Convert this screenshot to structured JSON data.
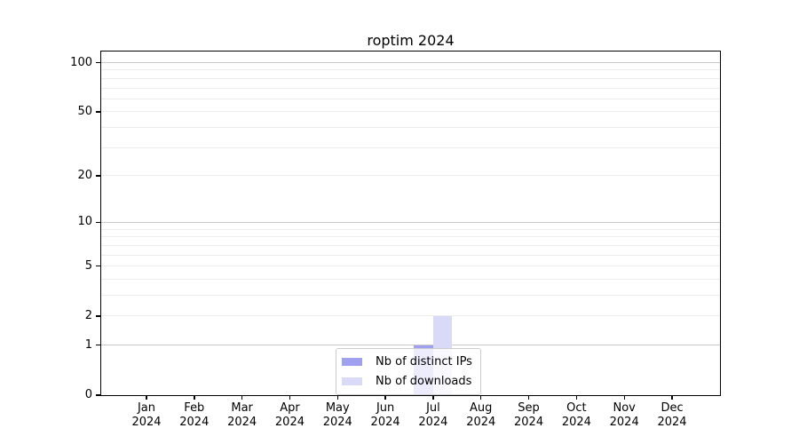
{
  "figure": {
    "background": "#ffffff"
  },
  "chart_data": {
    "type": "bar",
    "title": "roptim 2024",
    "x": [
      "Jan 2024",
      "Feb 2024",
      "Mar 2024",
      "Apr 2024",
      "May 2024",
      "Jun 2024",
      "Jul 2024",
      "Aug 2024",
      "Sep 2024",
      "Oct 2024",
      "Nov 2024",
      "Dec 2024"
    ],
    "months": [
      "Jan",
      "Feb",
      "Mar",
      "Apr",
      "May",
      "Jun",
      "Jul",
      "Aug",
      "Sep",
      "Oct",
      "Nov",
      "Dec"
    ],
    "year": "2024",
    "series": [
      {
        "name": "Nb of distinct IPs",
        "color": "#a0a0f0",
        "values": [
          0,
          0,
          0,
          0,
          0,
          0,
          1,
          0,
          0,
          0,
          0,
          0
        ]
      },
      {
        "name": "Nb of downloads",
        "color": "#d9d9f8",
        "values": [
          0,
          0,
          0,
          0,
          0,
          0,
          2,
          0,
          0,
          0,
          0,
          0
        ]
      }
    ],
    "yscale": "log1p",
    "ylim": [
      0,
      108
    ],
    "y_ticks": [
      100,
      50,
      20,
      10,
      5,
      2,
      1,
      0
    ],
    "y_tick_labels": [
      "100",
      "50",
      "20",
      "10",
      "5",
      "2",
      "1",
      "0"
    ],
    "gridlines_major": [
      1,
      10,
      100
    ],
    "gridlines_minor": [
      2,
      3,
      4,
      5,
      6,
      7,
      8,
      9,
      20,
      30,
      40,
      50,
      60,
      70,
      80,
      90
    ],
    "grid_color_major": "#c8c8c8",
    "grid_color_minor": "#ececec",
    "legend_position": "lower center",
    "legend": [
      "Nb of distinct IPs",
      "Nb of downloads"
    ]
  }
}
